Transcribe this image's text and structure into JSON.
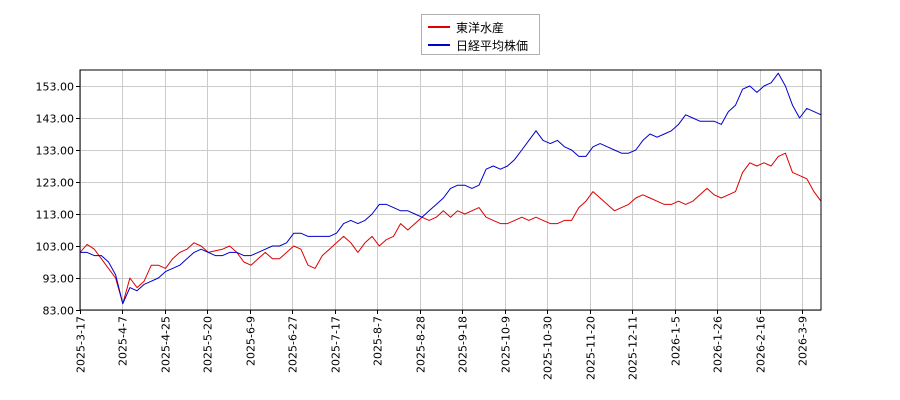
{
  "chart_data": {
    "type": "line",
    "legend_position": "top-center",
    "grid": true,
    "ylim": [
      83,
      158
    ],
    "yticks": [
      "83.00",
      "93.00",
      "103.00",
      "113.00",
      "123.00",
      "133.00",
      "143.00",
      "153.00"
    ],
    "xticks": [
      "2025-3-17",
      "2025-4-7",
      "2025-4-25",
      "2025-5-20",
      "2025-6-9",
      "2025-6-27",
      "2025-7-17",
      "2025-8-7",
      "2025-8-28",
      "2025-9-18",
      "2025-10-9",
      "2025-10-30",
      "2025-11-20",
      "2025-12-11",
      "2026-1-5",
      "2026-1-26",
      "2026-2-16",
      "2026-3-9"
    ],
    "series": [
      {
        "name": "東洋水産",
        "color": "#dd0000",
        "points": [
          [
            0,
            101.0
          ],
          [
            1,
            103.5
          ],
          [
            2,
            102.0
          ],
          [
            3,
            99.0
          ],
          [
            4,
            96.0
          ],
          [
            5,
            93.0
          ],
          [
            6,
            85.0
          ],
          [
            7,
            93.0
          ],
          [
            8,
            90.0
          ],
          [
            9,
            92.0
          ],
          [
            10,
            97.0
          ],
          [
            11,
            97.0
          ],
          [
            12,
            96.0
          ],
          [
            13,
            99.0
          ],
          [
            14,
            101.0
          ],
          [
            15,
            102.0
          ],
          [
            16,
            104.0
          ],
          [
            17,
            103.0
          ],
          [
            18,
            101.0
          ],
          [
            19,
            101.5
          ],
          [
            20,
            102.0
          ],
          [
            21,
            103.0
          ],
          [
            22,
            101.0
          ],
          [
            23,
            98.0
          ],
          [
            24,
            97.0
          ],
          [
            25,
            99.0
          ],
          [
            26,
            101.0
          ],
          [
            27,
            99.0
          ],
          [
            28,
            99.0
          ],
          [
            29,
            101.0
          ],
          [
            30,
            103.0
          ],
          [
            31,
            102.0
          ],
          [
            32,
            97.0
          ],
          [
            33,
            96.0
          ],
          [
            34,
            100.0
          ],
          [
            35,
            102.0
          ],
          [
            36,
            104.0
          ],
          [
            37,
            106.0
          ],
          [
            38,
            104.0
          ],
          [
            39,
            101.0
          ],
          [
            40,
            104.0
          ],
          [
            41,
            106.0
          ],
          [
            42,
            103.0
          ],
          [
            43,
            105.0
          ],
          [
            44,
            106.0
          ],
          [
            45,
            110.0
          ],
          [
            46,
            108.0
          ],
          [
            47,
            110.0
          ],
          [
            48,
            112.0
          ],
          [
            49,
            111.0
          ],
          [
            50,
            112.0
          ],
          [
            51,
            114.0
          ],
          [
            52,
            112.0
          ],
          [
            53,
            114.0
          ],
          [
            54,
            113.0
          ],
          [
            55,
            114.0
          ],
          [
            56,
            115.0
          ],
          [
            57,
            112.0
          ],
          [
            58,
            111.0
          ],
          [
            59,
            110.0
          ],
          [
            60,
            110.0
          ],
          [
            61,
            111.0
          ],
          [
            62,
            112.0
          ],
          [
            63,
            111.0
          ],
          [
            64,
            112.0
          ],
          [
            65,
            111.0
          ],
          [
            66,
            110.0
          ],
          [
            67,
            110.0
          ],
          [
            68,
            111.0
          ],
          [
            69,
            111.0
          ],
          [
            70,
            115.0
          ],
          [
            71,
            117.0
          ],
          [
            72,
            120.0
          ],
          [
            73,
            118.0
          ],
          [
            74,
            116.0
          ],
          [
            75,
            114.0
          ],
          [
            76,
            115.0
          ],
          [
            77,
            116.0
          ],
          [
            78,
            118.0
          ],
          [
            79,
            119.0
          ],
          [
            80,
            118.0
          ],
          [
            81,
            117.0
          ],
          [
            82,
            116.0
          ],
          [
            83,
            116.0
          ],
          [
            84,
            117.0
          ],
          [
            85,
            116.0
          ],
          [
            86,
            117.0
          ],
          [
            87,
            119.0
          ],
          [
            88,
            121.0
          ],
          [
            89,
            119.0
          ],
          [
            90,
            118.0
          ],
          [
            91,
            119.0
          ],
          [
            92,
            120.0
          ],
          [
            93,
            126.0
          ],
          [
            94,
            129.0
          ],
          [
            95,
            128.0
          ],
          [
            96,
            129.0
          ],
          [
            97,
            128.0
          ],
          [
            98,
            131.0
          ],
          [
            99,
            132.0
          ],
          [
            100,
            126.0
          ],
          [
            101,
            125.0
          ],
          [
            102,
            124.0
          ],
          [
            103,
            120.0
          ],
          [
            104,
            117.0
          ]
        ]
      },
      {
        "name": "日経平均株価",
        "color": "#0000cc",
        "points": [
          [
            0,
            101.0
          ],
          [
            1,
            101.0
          ],
          [
            2,
            100.0
          ],
          [
            3,
            100.0
          ],
          [
            4,
            98.0
          ],
          [
            5,
            94.0
          ],
          [
            6,
            85.0
          ],
          [
            7,
            90.0
          ],
          [
            8,
            89.0
          ],
          [
            9,
            91.0
          ],
          [
            10,
            92.0
          ],
          [
            11,
            93.0
          ],
          [
            12,
            95.0
          ],
          [
            13,
            96.0
          ],
          [
            14,
            97.0
          ],
          [
            15,
            99.0
          ],
          [
            16,
            101.0
          ],
          [
            17,
            102.0
          ],
          [
            18,
            101.0
          ],
          [
            19,
            100.0
          ],
          [
            20,
            100.0
          ],
          [
            21,
            101.0
          ],
          [
            22,
            101.0
          ],
          [
            23,
            100.0
          ],
          [
            24,
            100.0
          ],
          [
            25,
            101.0
          ],
          [
            26,
            102.0
          ],
          [
            27,
            103.0
          ],
          [
            28,
            103.0
          ],
          [
            29,
            104.0
          ],
          [
            30,
            107.0
          ],
          [
            31,
            107.0
          ],
          [
            32,
            106.0
          ],
          [
            33,
            106.0
          ],
          [
            34,
            106.0
          ],
          [
            35,
            106.0
          ],
          [
            36,
            107.0
          ],
          [
            37,
            110.0
          ],
          [
            38,
            111.0
          ],
          [
            39,
            110.0
          ],
          [
            40,
            111.0
          ],
          [
            41,
            113.0
          ],
          [
            42,
            116.0
          ],
          [
            43,
            116.0
          ],
          [
            44,
            115.0
          ],
          [
            45,
            114.0
          ],
          [
            46,
            114.0
          ],
          [
            47,
            113.0
          ],
          [
            48,
            112.0
          ],
          [
            49,
            114.0
          ],
          [
            50,
            116.0
          ],
          [
            51,
            118.0
          ],
          [
            52,
            121.0
          ],
          [
            53,
            122.0
          ],
          [
            54,
            122.0
          ],
          [
            55,
            121.0
          ],
          [
            56,
            122.0
          ],
          [
            57,
            127.0
          ],
          [
            58,
            128.0
          ],
          [
            59,
            127.0
          ],
          [
            60,
            128.0
          ],
          [
            61,
            130.0
          ],
          [
            62,
            133.0
          ],
          [
            63,
            136.0
          ],
          [
            64,
            139.0
          ],
          [
            65,
            136.0
          ],
          [
            66,
            135.0
          ],
          [
            67,
            136.0
          ],
          [
            68,
            134.0
          ],
          [
            69,
            133.0
          ],
          [
            70,
            131.0
          ],
          [
            71,
            131.0
          ],
          [
            72,
            134.0
          ],
          [
            73,
            135.0
          ],
          [
            74,
            134.0
          ],
          [
            75,
            133.0
          ],
          [
            76,
            132.0
          ],
          [
            77,
            132.0
          ],
          [
            78,
            133.0
          ],
          [
            79,
            136.0
          ],
          [
            80,
            138.0
          ],
          [
            81,
            137.0
          ],
          [
            82,
            138.0
          ],
          [
            83,
            139.0
          ],
          [
            84,
            141.0
          ],
          [
            85,
            144.0
          ],
          [
            86,
            143.0
          ],
          [
            87,
            142.0
          ],
          [
            88,
            142.0
          ],
          [
            89,
            142.0
          ],
          [
            90,
            141.0
          ],
          [
            91,
            145.0
          ],
          [
            92,
            147.0
          ],
          [
            93,
            152.0
          ],
          [
            94,
            153.0
          ],
          [
            95,
            151.0
          ],
          [
            96,
            153.0
          ],
          [
            97,
            154.0
          ],
          [
            98,
            157.0
          ],
          [
            99,
            153.0
          ],
          [
            100,
            147.0
          ],
          [
            101,
            143.0
          ],
          [
            102,
            146.0
          ],
          [
            103,
            145.0
          ],
          [
            104,
            144.0
          ]
        ]
      }
    ]
  }
}
